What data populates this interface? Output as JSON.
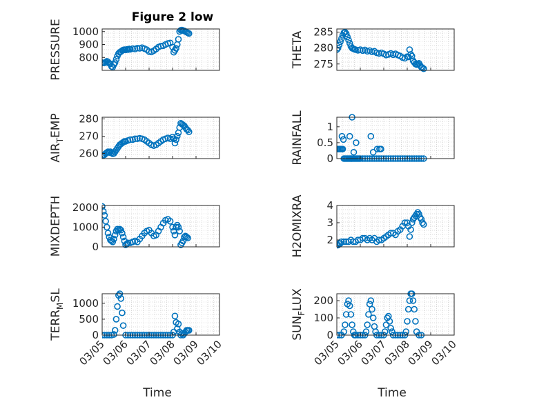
{
  "chart_data": {
    "title": "Figure 2 low",
    "marker_color": "#0072BD",
    "grid": "dotted",
    "x_ticks": [
      "03/05",
      "03/06",
      "03/07",
      "03/08",
      "03/09",
      "03/10"
    ],
    "xlabel": "Time",
    "panels": [
      {
        "id": "pressure",
        "type": "scatter",
        "ylabel": "PRESSURE",
        "ylabel_sub": "",
        "ylim": [
          700,
          1020
        ],
        "yticks": [
          800,
          900,
          1000
        ],
        "x": [
          0.0,
          0.05,
          0.1,
          0.15,
          0.2,
          0.25,
          0.3,
          0.35,
          0.4,
          0.45,
          0.5,
          0.55,
          0.6,
          0.65,
          0.7,
          0.75,
          0.8,
          0.85,
          0.9,
          0.95,
          1.0,
          1.05,
          1.1,
          1.15,
          1.2,
          1.3,
          1.4,
          1.5,
          1.6,
          1.7,
          1.8,
          1.9,
          2.0,
          2.1,
          2.2,
          2.3,
          2.4,
          2.5,
          2.6,
          2.7,
          2.8,
          2.9,
          3.0,
          3.05,
          3.1,
          3.15,
          3.2,
          3.25,
          3.3,
          3.35,
          3.4,
          3.45,
          3.5,
          3.55,
          3.6,
          3.65,
          3.7
        ],
        "y": [
          760,
          758,
          758,
          762,
          770,
          765,
          755,
          750,
          730,
          725,
          745,
          760,
          785,
          810,
          830,
          840,
          845,
          852,
          858,
          860,
          858,
          862,
          860,
          865,
          862,
          868,
          865,
          872,
          870,
          875,
          868,
          860,
          845,
          842,
          852,
          865,
          880,
          888,
          890,
          900,
          908,
          912,
          880,
          840,
          855,
          870,
          900,
          940,
          1000,
          1010,
          1012,
          1008,
          1005,
          1000,
          995,
          990,
          985
        ]
      },
      {
        "id": "theta",
        "type": "scatter",
        "ylabel": "THETA",
        "ylabel_sub": "",
        "ylim": [
          273,
          286
        ],
        "yticks": [
          275,
          280,
          285
        ],
        "x": [
          0.0,
          0.05,
          0.1,
          0.15,
          0.2,
          0.25,
          0.3,
          0.35,
          0.4,
          0.45,
          0.5,
          0.55,
          0.6,
          0.65,
          0.7,
          0.75,
          0.8,
          0.9,
          1.0,
          1.1,
          1.2,
          1.3,
          1.4,
          1.5,
          1.6,
          1.7,
          1.8,
          1.9,
          2.0,
          2.1,
          2.2,
          2.3,
          2.4,
          2.5,
          2.6,
          2.7,
          2.8,
          2.9,
          3.0,
          3.05,
          3.1,
          3.15,
          3.2,
          3.25,
          3.3,
          3.35,
          3.4,
          3.45,
          3.5,
          3.55,
          3.6,
          3.65,
          3.7
        ],
        "y": [
          279.5,
          280,
          281,
          282,
          283,
          284,
          284.8,
          285,
          284.5,
          283.5,
          282.5,
          281.5,
          280.5,
          280,
          279.8,
          279.6,
          279.5,
          279.3,
          279.5,
          279.2,
          279.4,
          279,
          279.2,
          278.8,
          279,
          278.5,
          278.3,
          278.5,
          278.2,
          277.8,
          278,
          278.3,
          277.9,
          278.2,
          277.8,
          277.5,
          277,
          276.8,
          277.3,
          277.2,
          279.5,
          278,
          277.5,
          276,
          275.5,
          275,
          274.8,
          275,
          275.2,
          274.5,
          274,
          273.8,
          273.5
        ]
      },
      {
        "id": "air_temp",
        "type": "scatter",
        "ylabel": "AIR",
        "ylabel_sub": "T",
        "ylabel_after": "EMP",
        "ylim": [
          257,
          281
        ],
        "yticks": [
          260,
          270,
          280
        ],
        "x": [
          0.0,
          0.05,
          0.1,
          0.15,
          0.2,
          0.25,
          0.3,
          0.35,
          0.4,
          0.45,
          0.5,
          0.55,
          0.6,
          0.65,
          0.7,
          0.75,
          0.8,
          0.85,
          0.9,
          0.95,
          1.0,
          1.1,
          1.2,
          1.3,
          1.4,
          1.5,
          1.6,
          1.7,
          1.8,
          1.9,
          2.0,
          2.1,
          2.2,
          2.3,
          2.4,
          2.5,
          2.6,
          2.7,
          2.8,
          2.9,
          3.0,
          3.05,
          3.1,
          3.15,
          3.2,
          3.25,
          3.3,
          3.35,
          3.4,
          3.45,
          3.5,
          3.55,
          3.6,
          3.65,
          3.7
        ],
        "y": [
          259,
          259,
          259.2,
          260,
          260.5,
          261,
          260.5,
          261,
          260.3,
          259.8,
          260,
          261,
          262,
          263,
          264,
          265,
          265.5,
          266,
          266.5,
          267,
          267,
          267.5,
          268,
          268,
          268.5,
          268.5,
          268.8,
          268.5,
          268,
          267,
          266,
          265,
          264.5,
          265,
          266,
          267,
          268,
          268.5,
          269,
          268.5,
          269.5,
          268.5,
          266,
          268,
          270,
          272,
          275,
          277.5,
          277,
          276.5,
          276,
          275,
          274,
          273.5,
          272.5
        ]
      },
      {
        "id": "rainfall",
        "type": "scatter",
        "ylabel": "RAINFALL",
        "ylabel_sub": "",
        "ylim": [
          0,
          1.3
        ],
        "yticks": [
          0,
          0.5,
          1
        ],
        "ytick_labels": [
          "0",
          "0.5",
          "1"
        ],
        "x": [
          0.0,
          0.05,
          0.1,
          0.15,
          0.2,
          0.25,
          0.3,
          0.35,
          0.4,
          0.45,
          0.5,
          0.55,
          0.6,
          0.65,
          0.7,
          0.75,
          0.8,
          0.85,
          0.9,
          0.95,
          1.0,
          1.1,
          1.2,
          1.3,
          1.4,
          1.5,
          1.6,
          1.7,
          1.8,
          1.9,
          2.0,
          2.1,
          2.2,
          2.3,
          2.4,
          2.5,
          2.6,
          2.7,
          2.8,
          2.9,
          3.0,
          3.1,
          3.2,
          3.3,
          3.4,
          3.5,
          3.6,
          3.7,
          0.22,
          0.28,
          0.55,
          0.65,
          0.72,
          0.82,
          1.45,
          1.55,
          1.72,
          1.82,
          1.88
        ],
        "y": [
          0.3,
          0.3,
          0.3,
          0.3,
          0.3,
          0.3,
          0.0,
          0.0,
          0.0,
          0.0,
          0.0,
          0.0,
          0.0,
          0.0,
          0.0,
          0.0,
          0.0,
          0.0,
          0.0,
          0.0,
          0.0,
          0.0,
          0.0,
          0.0,
          0.0,
          0.0,
          0.0,
          0.0,
          0.0,
          0.0,
          0.0,
          0.0,
          0.0,
          0.0,
          0.0,
          0.0,
          0.0,
          0.0,
          0.0,
          0.0,
          0.0,
          0.0,
          0.0,
          0.0,
          0.0,
          0.0,
          0.0,
          0.0,
          0.7,
          0.6,
          0.7,
          1.3,
          0.2,
          0.5,
          0.7,
          0.2,
          0.3,
          0.3,
          0.3
        ]
      },
      {
        "id": "mixdepth",
        "type": "scatter",
        "ylabel": "MIXDEPTH",
        "ylabel_sub": "",
        "ylim": [
          0,
          2100
        ],
        "yticks": [
          0,
          1000,
          2000
        ],
        "x": [
          0.0,
          0.05,
          0.1,
          0.15,
          0.2,
          0.25,
          0.3,
          0.35,
          0.4,
          0.45,
          0.5,
          0.55,
          0.6,
          0.65,
          0.7,
          0.75,
          0.8,
          0.85,
          0.9,
          0.95,
          1.0,
          1.05,
          1.1,
          1.2,
          1.3,
          1.4,
          1.5,
          1.6,
          1.7,
          1.8,
          1.9,
          2.0,
          2.1,
          2.2,
          2.3,
          2.4,
          2.5,
          2.6,
          2.7,
          2.8,
          2.9,
          3.0,
          3.05,
          3.1,
          3.15,
          3.2,
          3.25,
          3.3,
          3.35,
          3.4,
          3.45,
          3.5,
          3.55,
          3.6,
          3.65
        ],
        "y": [
          2050,
          1800,
          1600,
          1300,
          1000,
          700,
          500,
          350,
          300,
          250,
          400,
          600,
          800,
          900,
          850,
          900,
          850,
          700,
          500,
          300,
          100,
          150,
          200,
          200,
          250,
          300,
          250,
          400,
          550,
          700,
          800,
          850,
          700,
          550,
          600,
          800,
          1000,
          1200,
          1350,
          1400,
          1300,
          1000,
          800,
          600,
          1000,
          1100,
          1000,
          800,
          100,
          200,
          300,
          500,
          550,
          500,
          450
        ]
      },
      {
        "id": "h2omixra",
        "type": "scatter",
        "ylabel": "H2OMIXRA",
        "ylabel_sub": "",
        "ylim": [
          1.6,
          4.0
        ],
        "yticks": [
          2,
          3,
          4
        ],
        "x": [
          0.0,
          0.05,
          0.1,
          0.15,
          0.2,
          0.3,
          0.4,
          0.5,
          0.6,
          0.7,
          0.8,
          0.9,
          1.0,
          1.1,
          1.2,
          1.3,
          1.4,
          1.5,
          1.6,
          1.7,
          1.8,
          1.9,
          2.0,
          2.1,
          2.2,
          2.3,
          2.4,
          2.5,
          2.6,
          2.7,
          2.8,
          2.9,
          3.0,
          3.05,
          3.1,
          3.15,
          3.2,
          3.25,
          3.3,
          3.35,
          3.4,
          3.45,
          3.5,
          3.55,
          3.6,
          3.65,
          3.7
        ],
        "y": [
          1.7,
          1.7,
          1.8,
          1.8,
          1.9,
          1.9,
          1.9,
          1.9,
          2.0,
          1.9,
          1.9,
          2.0,
          2.0,
          2.1,
          2.1,
          2.0,
          2.1,
          2.0,
          2.1,
          1.9,
          2.0,
          2.0,
          2.1,
          2.2,
          2.3,
          2.4,
          2.4,
          2.3,
          2.5,
          2.6,
          2.8,
          3.0,
          3.0,
          2.8,
          2.2,
          2.6,
          3.0,
          3.2,
          3.3,
          3.4,
          3.5,
          3.6,
          3.5,
          3.3,
          3.2,
          3.0,
          2.9
        ]
      },
      {
        "id": "terr_msl",
        "type": "scatter",
        "ylabel": "TERR",
        "ylabel_sub": "M",
        "ylabel_after": "SL",
        "ylim": [
          0,
          1300
        ],
        "yticks": [
          0,
          500,
          1000
        ],
        "x": [
          0.0,
          0.1,
          0.2,
          0.3,
          0.4,
          0.5,
          0.55,
          0.6,
          0.65,
          0.7,
          0.75,
          0.8,
          0.85,
          0.9,
          1.0,
          1.1,
          1.2,
          1.3,
          1.4,
          1.5,
          1.6,
          1.7,
          1.8,
          1.9,
          2.0,
          2.1,
          2.2,
          2.3,
          2.4,
          2.5,
          2.6,
          2.7,
          2.8,
          2.9,
          3.0,
          3.05,
          3.1,
          3.15,
          3.2,
          3.25,
          3.3,
          3.35,
          3.4,
          3.45,
          3.5,
          3.55,
          3.6,
          3.65,
          3.7
        ],
        "y": [
          0,
          0,
          0,
          0,
          0,
          20,
          150,
          500,
          900,
          1250,
          1300,
          1150,
          700,
          300,
          0,
          0,
          0,
          0,
          0,
          0,
          0,
          0,
          0,
          0,
          0,
          0,
          0,
          0,
          0,
          0,
          0,
          0,
          0,
          0,
          0,
          100,
          600,
          400,
          200,
          350,
          100,
          0,
          50,
          0,
          50,
          100,
          150,
          150,
          150
        ]
      },
      {
        "id": "sun_flux",
        "type": "scatter",
        "ylabel": "SUN",
        "ylabel_sub": "F",
        "ylabel_after": "LUX",
        "ylim": [
          0,
          240
        ],
        "yticks": [
          0,
          100,
          200
        ],
        "x": [
          0.0,
          0.1,
          0.2,
          0.3,
          0.35,
          0.4,
          0.45,
          0.5,
          0.55,
          0.6,
          0.65,
          0.7,
          0.75,
          0.8,
          0.9,
          1.0,
          1.1,
          1.2,
          1.25,
          1.3,
          1.35,
          1.4,
          1.45,
          1.5,
          1.55,
          1.6,
          1.65,
          1.7,
          1.8,
          1.9,
          2.0,
          2.05,
          2.1,
          2.15,
          2.2,
          2.25,
          2.3,
          2.35,
          2.4,
          2.5,
          2.6,
          2.7,
          2.8,
          2.9,
          2.95,
          3.0,
          3.05,
          3.1,
          3.15,
          3.2,
          3.25,
          3.3,
          3.35,
          3.4,
          3.5,
          3.6
        ],
        "y": [
          0,
          0,
          0,
          20,
          60,
          120,
          180,
          200,
          170,
          120,
          60,
          20,
          0,
          0,
          0,
          0,
          0,
          0,
          20,
          60,
          120,
          180,
          200,
          150,
          100,
          50,
          20,
          0,
          0,
          0,
          0,
          20,
          60,
          100,
          110,
          80,
          40,
          20,
          0,
          0,
          0,
          0,
          0,
          0,
          20,
          80,
          150,
          200,
          240,
          240,
          200,
          150,
          80,
          20,
          0,
          0
        ]
      }
    ]
  }
}
